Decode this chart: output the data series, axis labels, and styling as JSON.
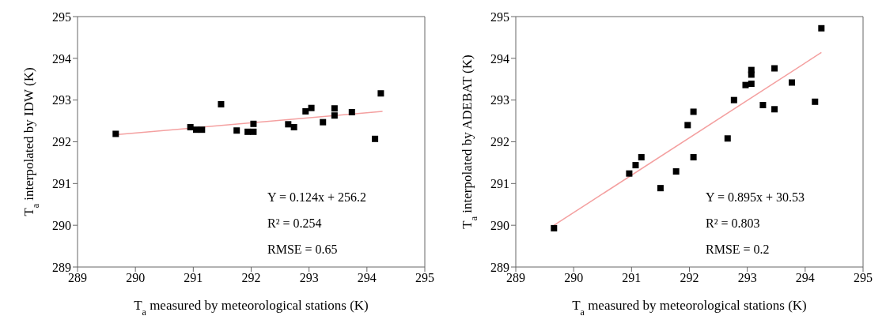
{
  "chart_data": [
    {
      "type": "scatter",
      "xlabel": "T$_{a}$ measured by meteorological stations (K)",
      "ylabel": "T$_{a}$ interpolated by IDW (K)",
      "xlim": [
        289,
        295
      ],
      "ylim": [
        289,
        295
      ],
      "xticks": [
        289,
        290,
        291,
        292,
        293,
        294,
        295
      ],
      "yticks": [
        289,
        290,
        291,
        292,
        293,
        294,
        295
      ],
      "grid": false,
      "legend": false,
      "series": [
        {
          "marker": "square",
          "color": "#000000",
          "x": [
            289.66,
            290.95,
            291.05,
            291.15,
            291.48,
            291.75,
            291.94,
            292.04,
            292.04,
            292.64,
            292.74,
            292.94,
            293.04,
            293.24,
            293.44,
            293.44,
            293.74,
            294.14,
            294.24
          ],
          "values": [
            292.19,
            292.35,
            292.29,
            292.29,
            292.9,
            292.27,
            292.24,
            292.24,
            292.43,
            292.42,
            292.35,
            292.73,
            292.81,
            292.47,
            292.8,
            292.63,
            292.71,
            292.07,
            293.16
          ]
        },
        {
          "type": "line",
          "marker": "none",
          "color": "#f4a0a0",
          "x": [
            289.66,
            294.27
          ],
          "values": [
            292.17,
            292.73
          ]
        }
      ],
      "annotations": [
        "Y = 0.124x + 256.2",
        "R² = 0.254",
        "RMSE = 0.65"
      ]
    },
    {
      "type": "scatter",
      "xlabel": "T$_{a}$ measured by meteorological stations (K)",
      "ylabel": "T$_{a}$ interpolated by ADEBAT (K)",
      "xlim": [
        289,
        295
      ],
      "ylim": [
        289,
        295
      ],
      "xticks": [
        289,
        290,
        291,
        292,
        293,
        294,
        295
      ],
      "yticks": [
        289,
        290,
        291,
        292,
        293,
        294,
        295
      ],
      "grid": false,
      "legend": false,
      "series": [
        {
          "marker": "square",
          "color": "#000000",
          "x": [
            289.66,
            290.96,
            291.07,
            291.17,
            291.5,
            291.77,
            291.97,
            292.07,
            292.07,
            292.66,
            292.77,
            292.97,
            293.07,
            293.07,
            293.07,
            293.27,
            293.47,
            293.47,
            293.77,
            294.17,
            294.28
          ],
          "values": [
            289.93,
            291.24,
            291.44,
            291.63,
            290.89,
            291.29,
            292.4,
            292.72,
            291.63,
            292.08,
            293.0,
            293.36,
            293.39,
            293.72,
            293.61,
            292.88,
            293.76,
            292.78,
            293.42,
            292.96,
            294.72
          ]
        },
        {
          "type": "line",
          "marker": "none",
          "color": "#f4a0a0",
          "x": [
            289.66,
            294.28
          ],
          "values": [
            290.0,
            294.14
          ]
        }
      ],
      "annotations": [
        "Y = 0.895x + 30.53",
        "R² = 0.803",
        "RMSE = 0.2"
      ]
    }
  ]
}
